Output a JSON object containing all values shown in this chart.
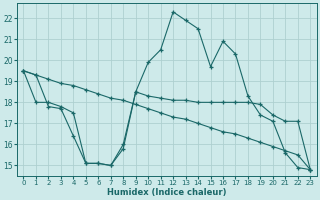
{
  "xlabel": "Humidex (Indice chaleur)",
  "background_color": "#ceeaea",
  "grid_color": "#aed0d0",
  "line_color": "#1a6868",
  "xlim": [
    -0.5,
    23.5
  ],
  "ylim": [
    14.5,
    22.7
  ],
  "yticks": [
    15,
    16,
    17,
    18,
    19,
    20,
    21,
    22
  ],
  "xticks": [
    0,
    1,
    2,
    3,
    4,
    5,
    6,
    7,
    8,
    9,
    10,
    11,
    12,
    13,
    14,
    15,
    16,
    17,
    18,
    19,
    20,
    21,
    22,
    23
  ],
  "line1_x": [
    0,
    1,
    2,
    3,
    4,
    5,
    6,
    7,
    8,
    9,
    10,
    11,
    12,
    13,
    14,
    15,
    16,
    17,
    18,
    19,
    20,
    21,
    22,
    23
  ],
  "line1_y": [
    19.5,
    19.3,
    19.1,
    18.9,
    18.8,
    18.6,
    18.4,
    18.2,
    18.1,
    17.9,
    17.7,
    17.5,
    17.3,
    17.2,
    17.0,
    16.8,
    16.6,
    16.5,
    16.3,
    16.1,
    15.9,
    15.7,
    15.5,
    14.8
  ],
  "line2_x": [
    0,
    1,
    2,
    3,
    4,
    5,
    6,
    7,
    8,
    9,
    10,
    11,
    12,
    13,
    14,
    15,
    16,
    17,
    18,
    19,
    20,
    21,
    22,
    23
  ],
  "line2_y": [
    19.5,
    19.3,
    17.8,
    17.7,
    16.4,
    15.1,
    15.1,
    15.0,
    15.8,
    18.5,
    19.9,
    20.5,
    22.3,
    21.9,
    21.5,
    19.7,
    20.9,
    20.3,
    18.3,
    17.4,
    17.1,
    15.6,
    14.9,
    14.8
  ],
  "line3_x": [
    0,
    1,
    2,
    3,
    4,
    5,
    6,
    7,
    8,
    9,
    10,
    11,
    12,
    13,
    14,
    15,
    16,
    17,
    18,
    19,
    20,
    21,
    22,
    23
  ],
  "line3_y": [
    19.5,
    18.0,
    18.0,
    17.8,
    17.5,
    15.1,
    15.1,
    15.0,
    16.0,
    18.5,
    18.3,
    18.2,
    18.1,
    18.1,
    18.0,
    18.0,
    18.0,
    18.0,
    18.0,
    17.9,
    17.4,
    17.1,
    17.1,
    14.8
  ]
}
